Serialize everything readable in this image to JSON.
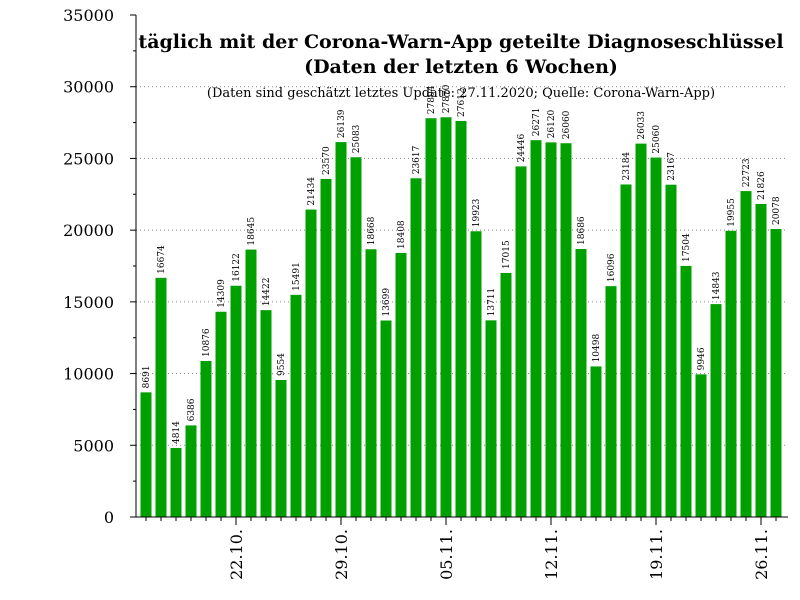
{
  "chart_data": {
    "type": "bar",
    "title_line1": "täglich mit der Corona-Warn-App geteilte Diagnoseschlüssel",
    "title_line2": "(Daten der letzten 6 Wochen)",
    "subtitle": "(Daten sind geschätzt letztes Update: 27.11.2020; Quelle: Corona-Warn-App)",
    "ylim": [
      0,
      35000
    ],
    "yticks": [
      0,
      5000,
      10000,
      15000,
      20000,
      25000,
      30000,
      35000
    ],
    "xtick_labels": [
      {
        "index": 6,
        "label": "22.10."
      },
      {
        "index": 13,
        "label": "29.10."
      },
      {
        "index": 20,
        "label": "05.11."
      },
      {
        "index": 27,
        "label": "12.11."
      },
      {
        "index": 34,
        "label": "19.11."
      },
      {
        "index": 41,
        "label": "26.11."
      }
    ],
    "values": [
      8691,
      16674,
      4814,
      6386,
      10876,
      14309,
      16122,
      18645,
      14422,
      9554,
      15491,
      21434,
      23570,
      26139,
      25083,
      18668,
      13699,
      18408,
      23617,
      27804,
      27870,
      27612,
      19923,
      13711,
      17015,
      24446,
      26271,
      26120,
      26060,
      18686,
      10498,
      16096,
      23184,
      26033,
      25060,
      23167,
      17504,
      9946,
      14843,
      19955,
      22723,
      21826,
      20078
    ],
    "bar_color": "#00a000",
    "grid": "horizontal dotted"
  }
}
